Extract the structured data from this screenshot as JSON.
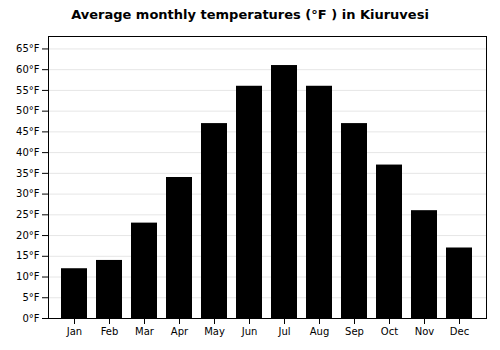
{
  "chart_data": {
    "type": "bar",
    "title": "Average monthly temperatures (°F ) in Kiuruvesi",
    "categories": [
      "Jan",
      "Feb",
      "Mar",
      "Apr",
      "May",
      "Jun",
      "Jul",
      "Aug",
      "Sep",
      "Oct",
      "Nov",
      "Dec"
    ],
    "values": [
      12,
      14,
      23,
      34,
      47,
      56,
      61,
      56,
      47,
      37,
      26,
      17
    ],
    "ylim": [
      0,
      68
    ],
    "yticks": [
      {
        "value": 0,
        "label": "0°F"
      },
      {
        "value": 5,
        "label": "5°F"
      },
      {
        "value": 10,
        "label": "10°F"
      },
      {
        "value": 15,
        "label": "15°F"
      },
      {
        "value": 20,
        "label": "20°F"
      },
      {
        "value": 25,
        "label": "25°F"
      },
      {
        "value": 30,
        "label": "30°F"
      },
      {
        "value": 35,
        "label": "35°F"
      },
      {
        "value": 40,
        "label": "40°F"
      },
      {
        "value": 45,
        "label": "45°F"
      },
      {
        "value": 50,
        "label": "50°F"
      },
      {
        "value": 55,
        "label": "55°F"
      },
      {
        "value": 60,
        "label": "60°F"
      },
      {
        "value": 65,
        "label": "65°F"
      }
    ],
    "grid": true
  }
}
